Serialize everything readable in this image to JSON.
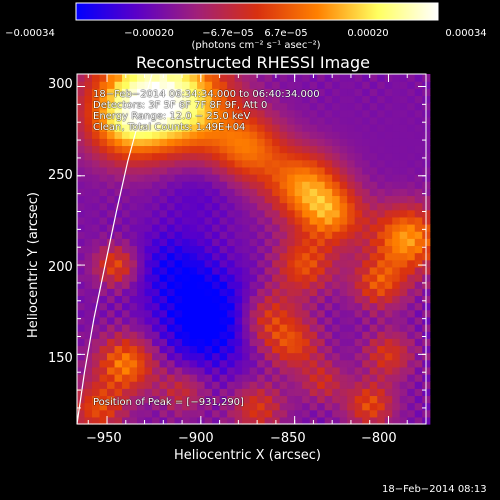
{
  "colorbar": {
    "ticks": [
      "−0.00034",
      "−0.00020",
      "−6.7e−05",
      "6.7e−05",
      "0.00020",
      "0.00034"
    ],
    "units": "(photons cm⁻² s⁻¹ asec⁻²)",
    "stops": [
      "#0000ff",
      "#5a00c8",
      "#a0207a",
      "#d83010",
      "#ff8000",
      "#ffff60",
      "#ffffff"
    ]
  },
  "chart_data": {
    "type": "heatmap",
    "title": "Reconstructed RHESSI Image",
    "xlabel": "Heliocentric X (arcsec)",
    "ylabel": "Heliocentric Y (arcsec)",
    "xlim": [
      -966,
      -780
    ],
    "ylim": [
      111,
      307
    ],
    "x_ticks": [
      -950,
      -900,
      -850,
      -800
    ],
    "x_tick_labels": [
      "−950",
      "−900",
      "−850",
      "−800"
    ],
    "y_ticks": [
      150,
      200,
      250,
      300
    ],
    "y_tick_labels": [
      "150",
      "200",
      "250",
      "300"
    ],
    "colorbar_range": [
      -0.00034,
      0.00034
    ],
    "annotations": {
      "time": "18−Feb−2014 06:34:34.000 to 06:40:34.000",
      "detectors": "Detectors: 3F 5F 6F 7F 8F 9F, Att 0",
      "energy": "Energy Range: 12.0 − 25.0 keV",
      "clean": "Clean, Total Counts: 1.49E+04",
      "peak": "Position of Peak = [−931,290]"
    },
    "limb_curve": [
      [
        -966,
        111
      ],
      [
        -962,
        140
      ],
      [
        -957,
        170
      ],
      [
        -951,
        200
      ],
      [
        -945,
        230
      ],
      [
        -939,
        258
      ],
      [
        -932,
        285
      ],
      [
        -926,
        307
      ]
    ],
    "grid": false
  },
  "footer": {
    "timestamp": "18−Feb−2014 08:13"
  }
}
